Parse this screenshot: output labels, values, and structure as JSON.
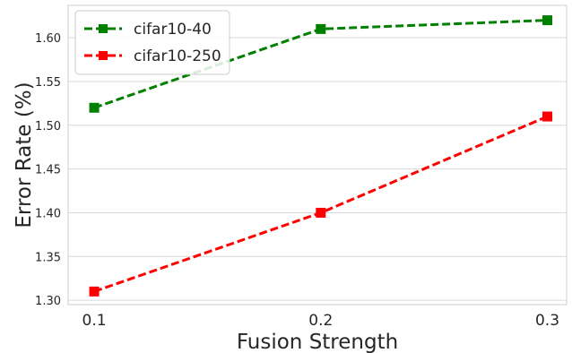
{
  "chart_data": {
    "type": "line",
    "x": [
      0.1,
      0.2,
      0.3
    ],
    "x_tick_labels": [
      "0.1",
      "0.2",
      "0.3"
    ],
    "xlabel": "Fusion Strength",
    "ylabel": "Error Rate (%)",
    "xlim": [
      0.0885,
      0.3085
    ],
    "ylim": [
      1.295,
      1.637
    ],
    "y_ticks": [
      1.3,
      1.35,
      1.4,
      1.45,
      1.5,
      1.55,
      1.6
    ],
    "y_tick_labels": [
      "1.30",
      "1.35",
      "1.40",
      "1.45",
      "1.50",
      "1.55",
      "1.60"
    ],
    "grid": "horizontal",
    "legend_position": "top-left",
    "series": [
      {
        "name": "cifar10-40",
        "values": [
          1.52,
          1.61,
          1.62
        ],
        "color": "#008000",
        "marker": "square",
        "line_style": "dashed"
      },
      {
        "name": "cifar10-250",
        "values": [
          1.31,
          1.4,
          1.51
        ],
        "color": "#ff0000",
        "marker": "square",
        "line_style": "dashed"
      }
    ]
  }
}
